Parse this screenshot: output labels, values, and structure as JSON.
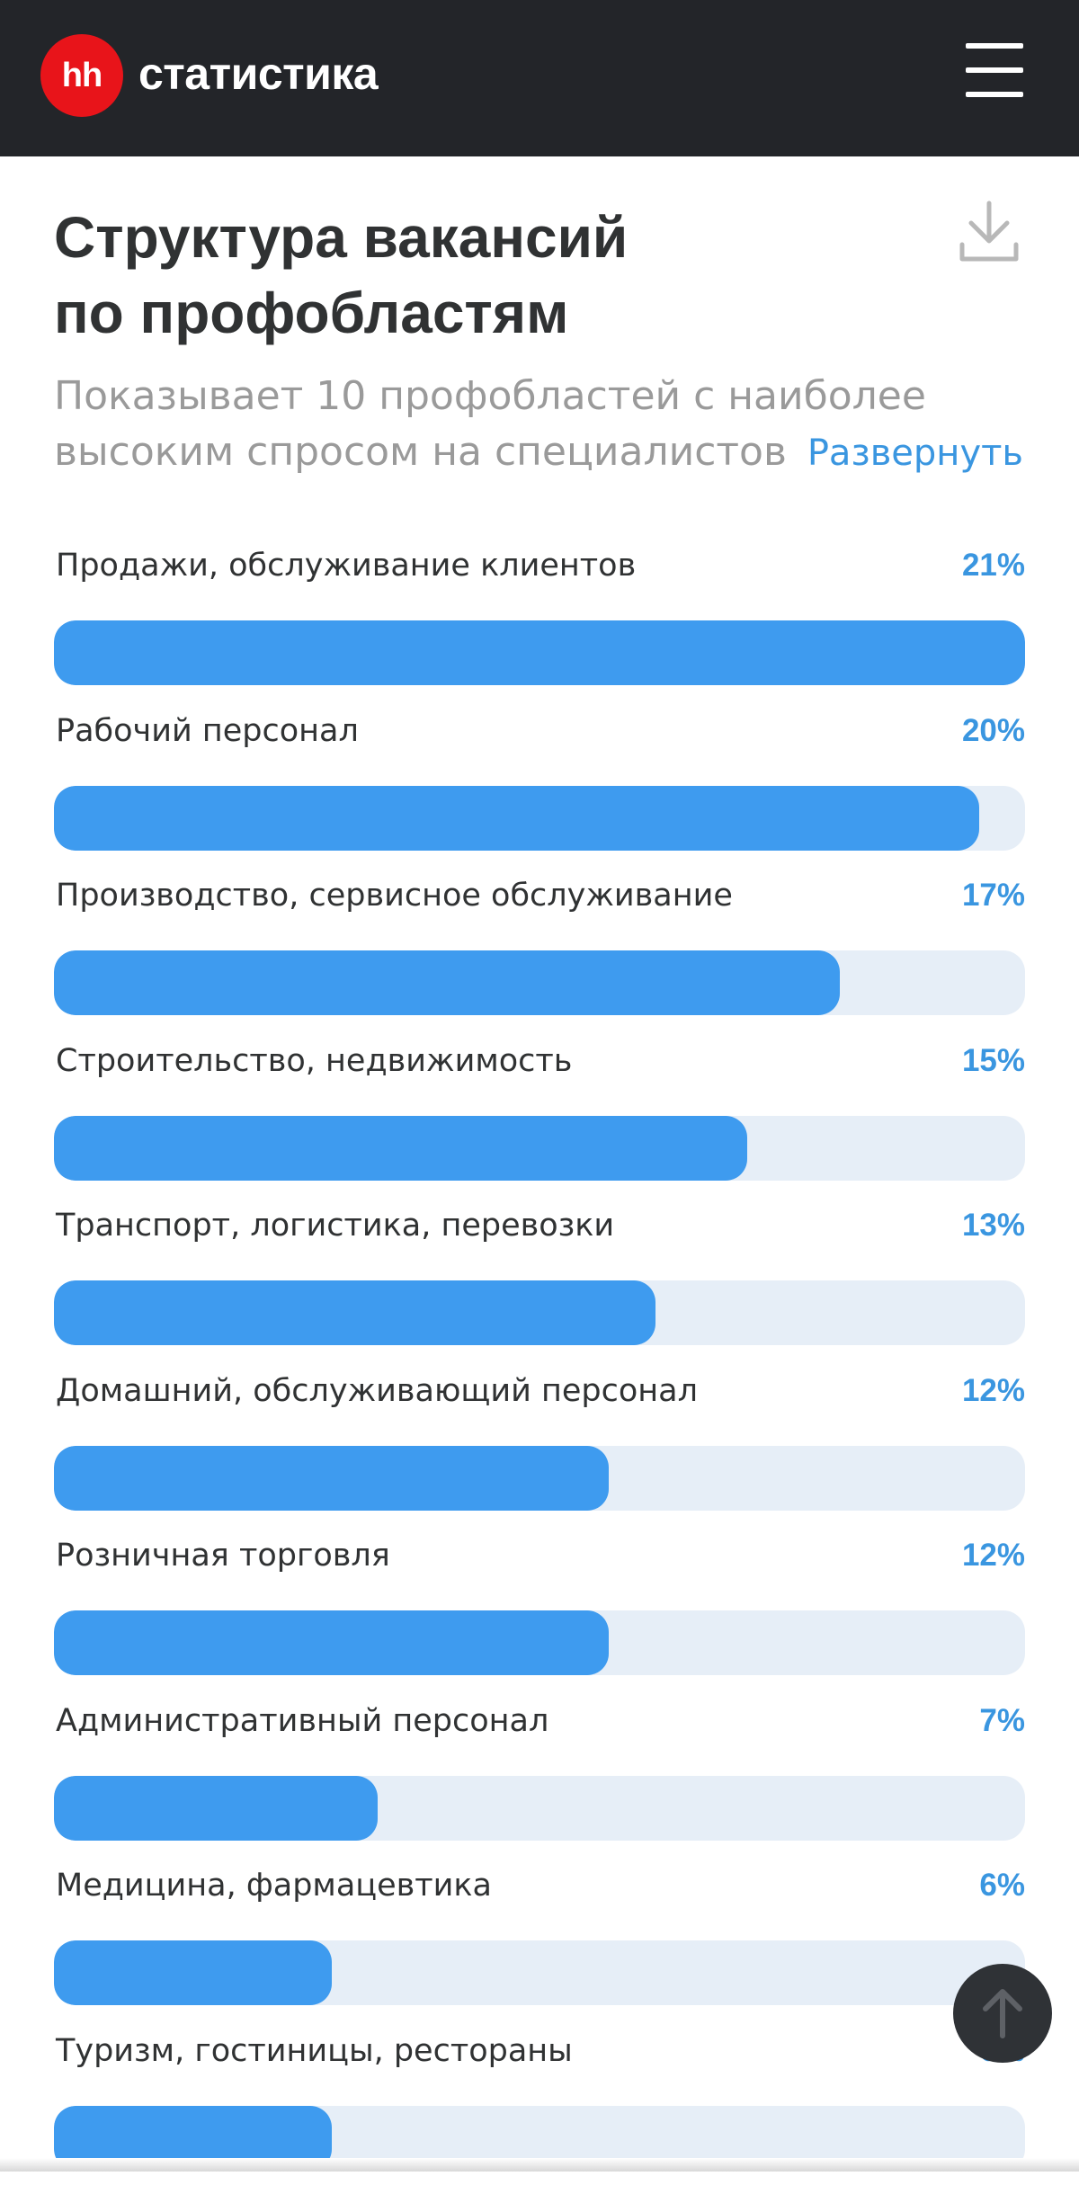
{
  "header": {
    "logo_mark": "hh",
    "logo_text": "статистика",
    "menu_icon": "hamburger-menu-icon"
  },
  "chart_header": {
    "title": "Структура вакансий\nпо профобластям",
    "subtitle": "Показывает 10 профобластей с наиболее\nвысоким спросом на специалистов",
    "expand_label": "Развернуть",
    "download_icon": "download-icon"
  },
  "colors": {
    "topbar": "#232529",
    "brand_red": "#e8141a",
    "bar_fill": "#3e9bef",
    "bar_track": "#e6eef7",
    "accent_blue": "#3a96e0"
  },
  "chart_data": {
    "type": "bar",
    "orientation": "horizontal",
    "categories": [
      "Продажи, обслуживание клиентов",
      "Рабочий персонал",
      "Производство, сервисное обслуживание",
      "Строительство, недвижимость",
      "Транспорт, логистика, перевозки",
      "Домашний, обслуживающий персонал",
      "Розничная торговля",
      "Административный персонал",
      "Медицина, фармацевтика",
      "Туризм, гостиницы, рестораны"
    ],
    "labels": [
      "21%",
      "20%",
      "17%",
      "15%",
      "13%",
      "12%",
      "12%",
      "7%",
      "6%",
      "6%"
    ],
    "values": [
      21,
      20,
      17,
      15,
      13,
      12,
      12,
      7,
      6,
      6
    ],
    "unit": "%"
  },
  "scroll_top_icon": "arrow-up-icon"
}
